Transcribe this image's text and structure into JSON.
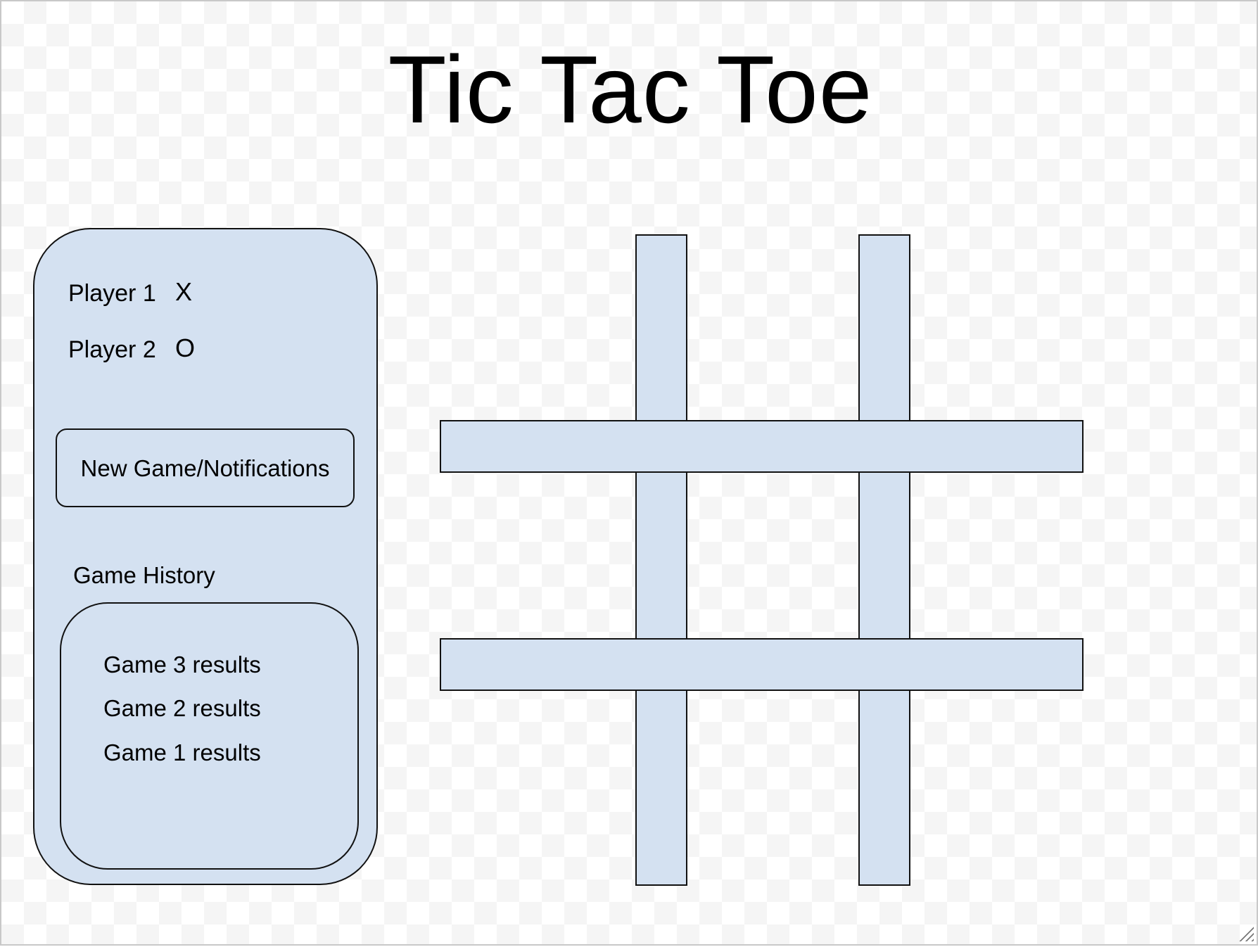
{
  "title": "Tic Tac Toe",
  "sidebar": {
    "players": [
      {
        "label": "Player 1",
        "mark": "X"
      },
      {
        "label": "Player 2",
        "mark": "O"
      }
    ],
    "new_game_button": "New Game/Notifications",
    "history_heading": "Game History",
    "history": [
      "Game 3 results",
      "Game 2 results",
      "Game 1 results"
    ]
  },
  "board": {
    "cells": [
      "",
      "",
      "",
      "",
      "",
      "",
      "",
      "",
      ""
    ]
  },
  "colors": {
    "panel_fill": "#d4e1f1",
    "outline": "#111111"
  },
  "icons": {
    "resize": "resize-grip-icon"
  }
}
